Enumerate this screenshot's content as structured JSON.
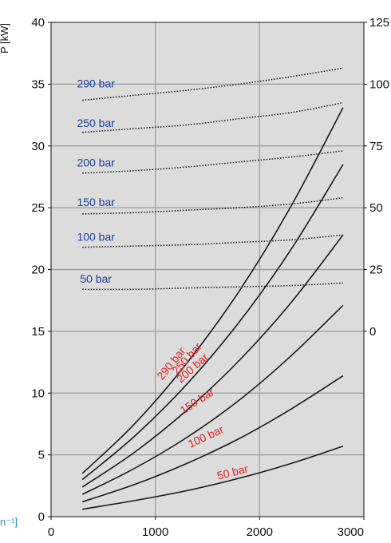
{
  "chart_data": {
    "type": "line",
    "ylabel": "P [kW]",
    "xlabel": "n⁻¹]",
    "xlim": [
      0,
      3000
    ],
    "ylim": [
      0,
      40
    ],
    "x_ticks": [
      "0",
      "1000",
      "2000",
      "3000"
    ],
    "y_ticks": [
      "0",
      "5",
      "10",
      "15",
      "20",
      "25",
      "30",
      "35",
      "40"
    ],
    "y2_ticks": [
      "0",
      "25",
      "50",
      "75",
      "100",
      "125"
    ],
    "y2_tick_values": [
      15,
      20,
      25,
      30,
      35,
      40
    ],
    "grid": true,
    "colors": {
      "plot_bg": "#dcdcdc",
      "grid": "#9a9a9a",
      "power_line": "#1a1a1a",
      "power_label": "#e02020",
      "torque_line": "#111111",
      "torque_label": "#1f3f9a"
    },
    "power_series": [
      {
        "name": "50 bar",
        "x": [
          300,
          800,
          1300,
          1800,
          2300,
          2800
        ],
        "y": [
          0.6,
          1.3,
          2.1,
          3.1,
          4.3,
          5.7
        ]
      },
      {
        "name": "100 bar",
        "x": [
          300,
          800,
          1300,
          1800,
          2300,
          2800
        ],
        "y": [
          1.2,
          2.6,
          4.3,
          6.3,
          8.7,
          11.4
        ]
      },
      {
        "name": "150 bar",
        "x": [
          300,
          800,
          1300,
          1800,
          2300,
          2800
        ],
        "y": [
          1.8,
          3.9,
          6.4,
          9.4,
          13.0,
          17.1
        ]
      },
      {
        "name": "200 bar",
        "x": [
          300,
          800,
          1300,
          1800,
          2300,
          2800
        ],
        "y": [
          2.4,
          5.2,
          8.6,
          12.6,
          17.3,
          22.8
        ]
      },
      {
        "name": "250 bar",
        "x": [
          300,
          800,
          1300,
          1800,
          2300,
          2800
        ],
        "y": [
          3.0,
          6.5,
          10.7,
          15.7,
          21.6,
          28.5
        ]
      },
      {
        "name": "290 bar",
        "x": [
          300,
          800,
          1300,
          1800,
          2300,
          2800
        ],
        "y": [
          3.5,
          7.5,
          12.4,
          18.2,
          25.1,
          33.1
        ]
      }
    ],
    "torque_series": [
      {
        "name": "50 bar",
        "x": [
          300,
          800,
          1300,
          1800,
          2300,
          2800
        ],
        "y": [
          18.4,
          18.4,
          18.5,
          18.6,
          18.7,
          18.9
        ]
      },
      {
        "name": "100 bar",
        "x": [
          300,
          800,
          1300,
          1800,
          2300,
          2800
        ],
        "y": [
          21.8,
          21.9,
          22.0,
          22.2,
          22.4,
          22.8
        ]
      },
      {
        "name": "150 bar",
        "x": [
          300,
          800,
          1300,
          1800,
          2300,
          2800
        ],
        "y": [
          24.5,
          24.6,
          24.8,
          25.0,
          25.3,
          25.8
        ]
      },
      {
        "name": "200 bar",
        "x": [
          300,
          800,
          1300,
          1800,
          2300,
          2800
        ],
        "y": [
          27.8,
          28.0,
          28.3,
          28.7,
          29.1,
          29.6
        ]
      },
      {
        "name": "250 bar",
        "x": [
          300,
          800,
          1300,
          1800,
          2300,
          2800
        ],
        "y": [
          31.1,
          31.4,
          31.7,
          32.2,
          32.7,
          33.5
        ]
      },
      {
        "name": "290 bar",
        "x": [
          300,
          800,
          1300,
          1800,
          2300,
          2800
        ],
        "y": [
          33.7,
          34.1,
          34.5,
          35.0,
          35.6,
          36.3
        ]
      }
    ],
    "power_labels": [
      {
        "text": "50 bar",
        "x": 1750,
        "y": 3.3,
        "angle": -14
      },
      {
        "text": "100 bar",
        "x": 1500,
        "y": 6.2,
        "angle": -25
      },
      {
        "text": "150 bar",
        "x": 1420,
        "y": 9.1,
        "angle": -33
      },
      {
        "text": "200 bar",
        "x": 1380,
        "y": 11.8,
        "angle": -42
      },
      {
        "text": "250 bar",
        "x": 1330,
        "y": 12.6,
        "angle": -48
      },
      {
        "text": "290 bar",
        "x": 1180,
        "y": 12.2,
        "angle": -51
      }
    ],
    "torque_labels": [
      {
        "text": "50 bar",
        "x": 430,
        "y": 18.8
      },
      {
        "text": "100 bar",
        "x": 430,
        "y": 22.2
      },
      {
        "text": "150 bar",
        "x": 430,
        "y": 25.0
      },
      {
        "text": "200 bar",
        "x": 430,
        "y": 28.2
      },
      {
        "text": "250 bar",
        "x": 430,
        "y": 31.4
      },
      {
        "text": "290 bar",
        "x": 430,
        "y": 34.6
      }
    ]
  }
}
